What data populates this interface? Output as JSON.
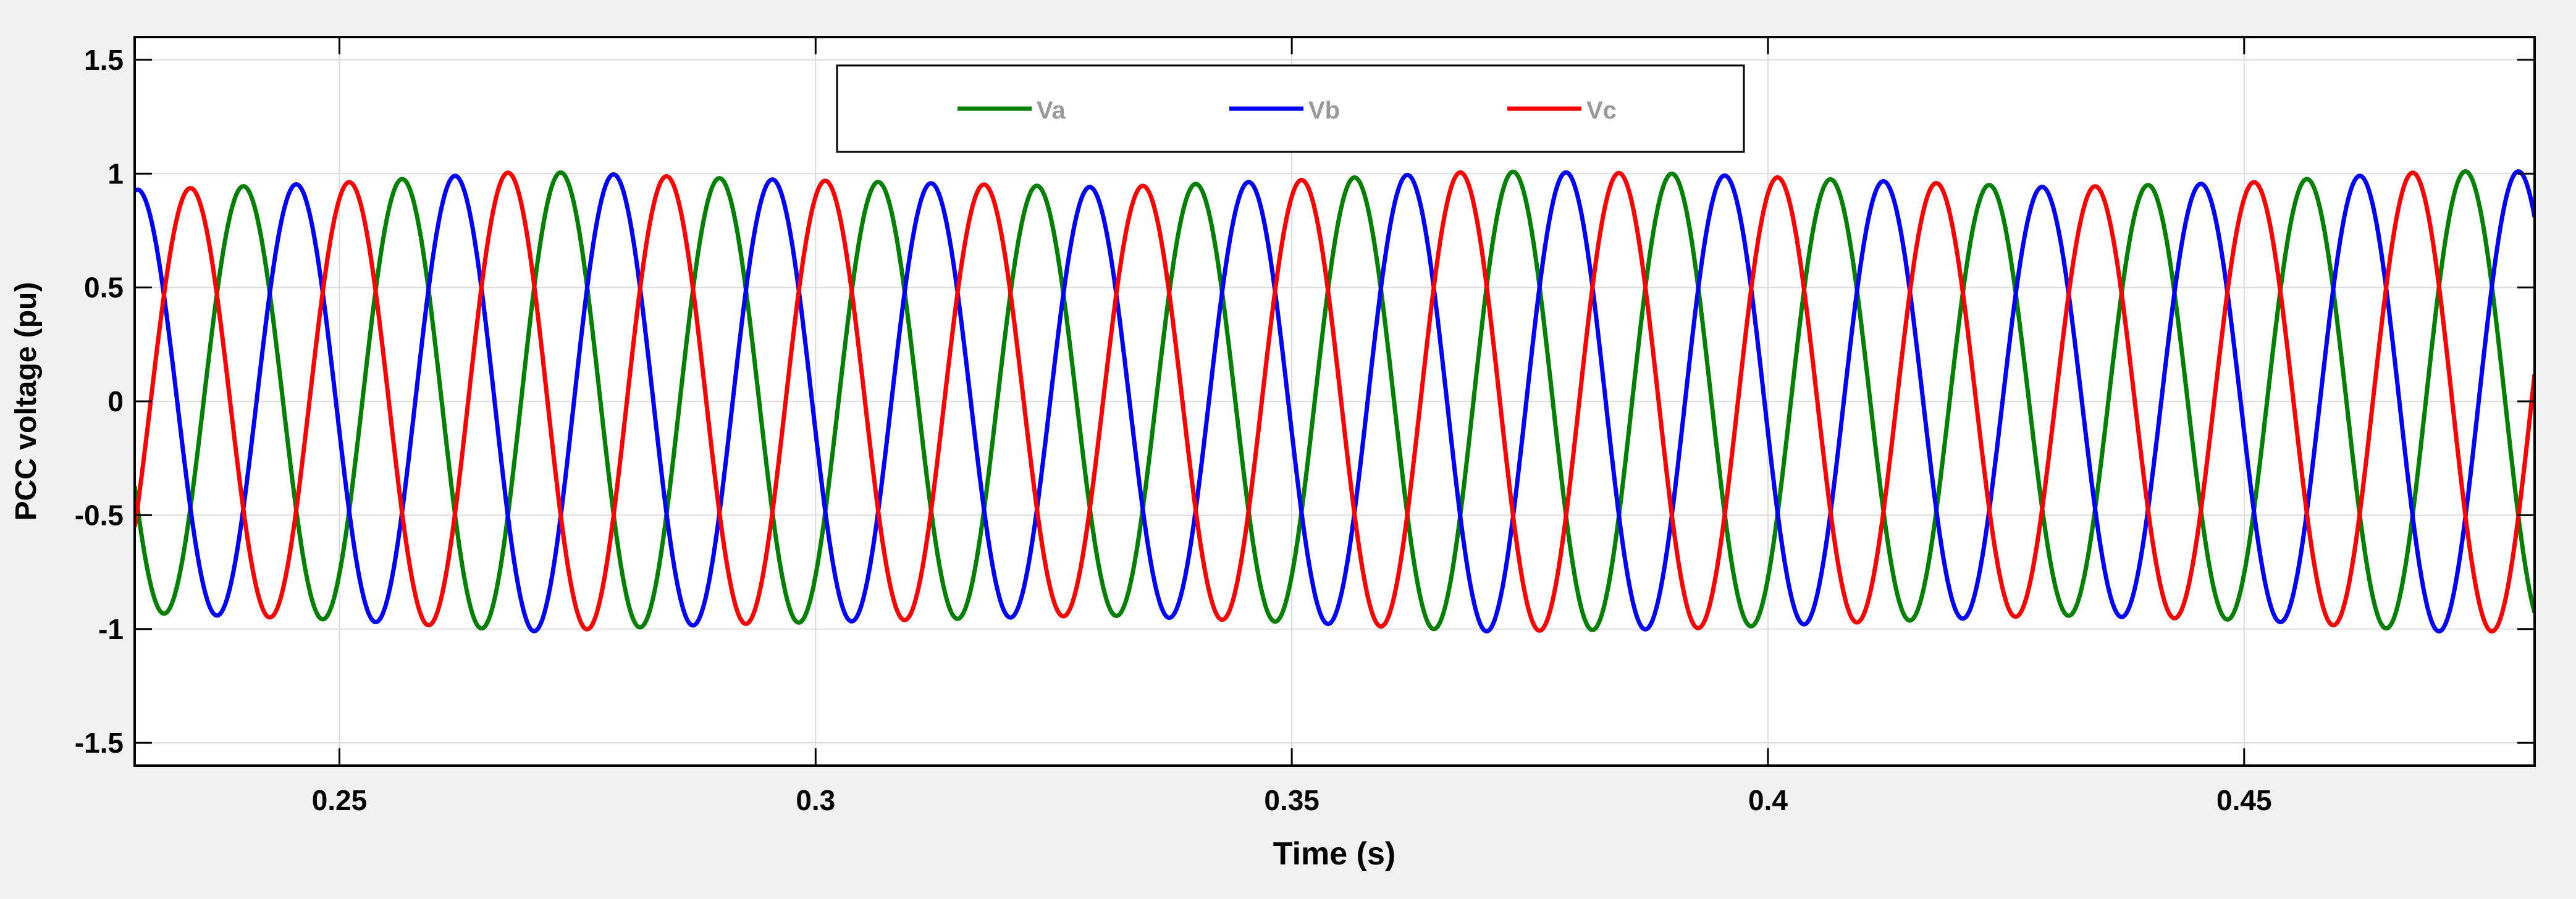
{
  "chart_data": {
    "type": "line",
    "title": "",
    "xlabel": "Time (s)",
    "ylabel": "PCC voltage (pu)",
    "xlim": [
      0.2285,
      0.4805
    ],
    "ylim": [
      -1.6,
      1.6
    ],
    "grid": true,
    "legend_position": "top-center",
    "xticks": [
      0.25,
      0.3,
      0.35,
      0.4,
      0.45
    ],
    "xtick_labels": [
      "0.25",
      "0.3",
      "0.35",
      "0.4",
      "0.45"
    ],
    "yticks": [
      -1.5,
      -1,
      -0.5,
      0,
      0.5,
      1,
      1.5
    ],
    "ytick_labels": [
      "-1.5",
      "-1",
      "-0.5",
      "0",
      "0.5",
      "1",
      "1.5"
    ],
    "frequency_hz": 60,
    "series": [
      {
        "name": "Va",
        "color": "#008000",
        "phase_deg": -52
      },
      {
        "name": "Vb",
        "color": "#0000ff",
        "phase_deg": -172
      },
      {
        "name": "Vc",
        "color": "#ff0000",
        "phase_deg": 68
      }
    ],
    "amplitude_envelope": {
      "t": [
        0.23,
        0.25,
        0.27,
        0.29,
        0.31,
        0.33,
        0.35,
        0.37,
        0.39,
        0.41,
        0.43,
        0.45,
        0.47,
        0.48
      ],
      "amplitude": [
        0.93,
        0.96,
        1.01,
        0.98,
        0.96,
        0.94,
        0.97,
        1.01,
        1.0,
        0.97,
        0.94,
        0.96,
        1.01,
        1.01
      ]
    }
  }
}
